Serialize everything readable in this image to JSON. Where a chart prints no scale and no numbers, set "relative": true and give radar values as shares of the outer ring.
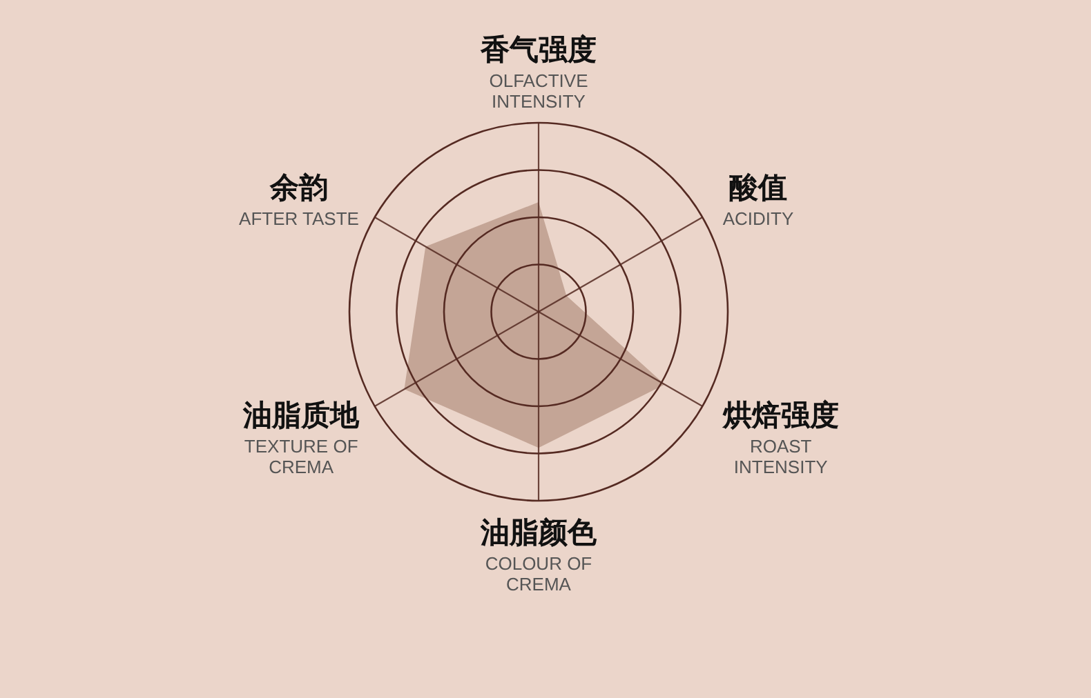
{
  "chart_data": {
    "type": "radar",
    "categories": [
      "香气强度\nOLFACTIVE\nINTENSITY",
      "酸值\nACIDITY",
      "烘焙强度\nROAST\nINTENSITY",
      "油脂颜色\nCOLOUR OF\nCREMA",
      "油脂质地\nTEXTURE OF\nCREMA",
      "余韵\nAFTER TASTE"
    ],
    "series": [
      {
        "color": "#c4a596",
        "values": [
          0.58,
          0.17,
          0.77,
          0.72,
          0.82,
          0.69
        ]
      }
    ],
    "relative": true,
    "grid": true
  }
}
